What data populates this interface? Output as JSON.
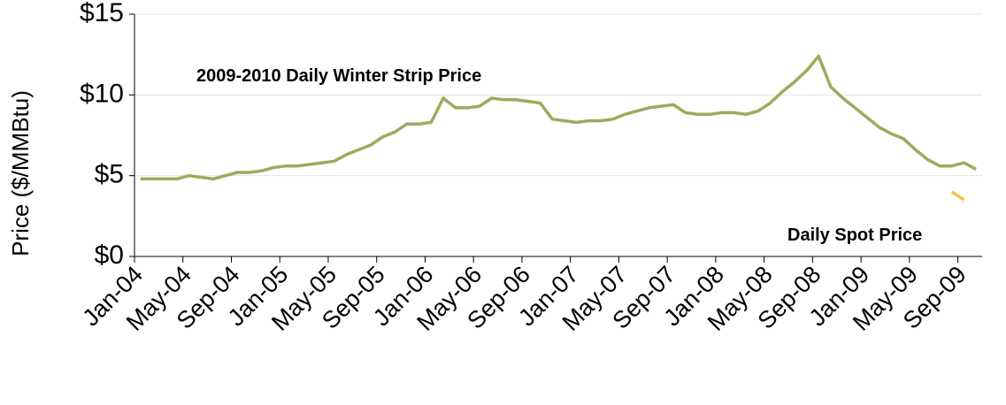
{
  "chart_data": {
    "type": "line",
    "y_label": "Price ($/MMBtu)",
    "annotations": [
      "2009-2010 Daily Winter Strip Price",
      "Daily Spot Price"
    ],
    "categories": [
      "Jan-04",
      null,
      null,
      null,
      "May-04",
      null,
      null,
      null,
      "Sep-04",
      null,
      null,
      null,
      "Jan-05",
      null,
      null,
      null,
      "May-05",
      null,
      null,
      null,
      "Sep-05",
      null,
      null,
      null,
      "Jan-06",
      null,
      null,
      null,
      "May-06",
      null,
      null,
      null,
      "Sep-06",
      null,
      null,
      null,
      "Jan-07",
      null,
      null,
      null,
      "May-07",
      null,
      null,
      null,
      "Sep-07",
      null,
      null,
      null,
      "Jan-08",
      null,
      null,
      null,
      "May-08",
      null,
      null,
      null,
      "Sep-08",
      null,
      null,
      null,
      "Jan-09",
      null,
      null,
      null,
      "May-09",
      null,
      null,
      null,
      "Sep-09",
      null
    ],
    "series": [
      {
        "name": "2009-2010 Daily Winter Strip Price",
        "color": "#9bab5c",
        "values": [
          4.8,
          4.8,
          4.8,
          4.8,
          5.0,
          4.9,
          4.8,
          5.0,
          5.2,
          5.2,
          5.3,
          5.5,
          5.6,
          5.6,
          5.7,
          5.8,
          5.9,
          6.3,
          6.6,
          6.9,
          7.4,
          7.7,
          8.2,
          8.2,
          8.3,
          9.8,
          9.2,
          9.2,
          9.3,
          9.8,
          9.7,
          9.7,
          9.6,
          9.5,
          8.5,
          8.4,
          8.3,
          8.4,
          8.4,
          8.5,
          8.8,
          9.0,
          9.2,
          9.3,
          9.4,
          8.9,
          8.8,
          8.8,
          8.9,
          8.9,
          8.8,
          9.0,
          9.5,
          10.2,
          10.8,
          11.5,
          12.4,
          10.5,
          9.8,
          9.2,
          8.6,
          8.0,
          7.6,
          7.3,
          6.6,
          6.0,
          5.6,
          5.6,
          5.8,
          5.4
        ]
      },
      {
        "name": "Daily Spot Price",
        "color": "#f5c242",
        "values": [
          null,
          null,
          null,
          null,
          null,
          null,
          null,
          null,
          null,
          null,
          null,
          null,
          null,
          null,
          null,
          null,
          null,
          null,
          null,
          null,
          null,
          null,
          null,
          null,
          null,
          null,
          null,
          null,
          null,
          null,
          null,
          null,
          null,
          null,
          null,
          null,
          null,
          null,
          null,
          null,
          null,
          null,
          null,
          null,
          null,
          null,
          null,
          null,
          null,
          null,
          null,
          null,
          null,
          null,
          null,
          null,
          null,
          null,
          null,
          null,
          null,
          null,
          null,
          null,
          null,
          null,
          null,
          4.0,
          3.5,
          null
        ]
      }
    ],
    "ylim": [
      0,
      15
    ],
    "yticks": [
      {
        "value": 0,
        "label": "$0"
      },
      {
        "value": 5,
        "label": "$5"
      },
      {
        "value": 10,
        "label": "$10"
      },
      {
        "value": 15,
        "label": "$15"
      }
    ],
    "grid": true
  }
}
